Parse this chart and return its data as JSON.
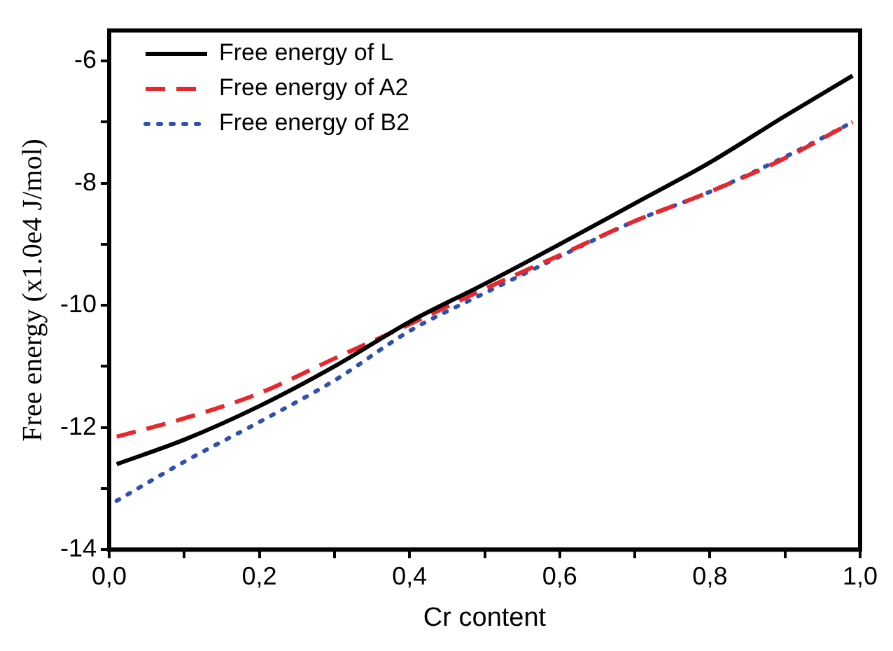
{
  "chart_data": {
    "type": "line",
    "xlabel": "Cr content",
    "ylabel": "Free energy (x1.0e4 J/mol)",
    "xlim": [
      0,
      1
    ],
    "ylim": [
      -14,
      -5.5
    ],
    "xticks": [
      {
        "value": 0,
        "label": "0,0"
      },
      {
        "value": 0.1,
        "label": null
      },
      {
        "value": 0.2,
        "label": "0,2"
      },
      {
        "value": 0.3,
        "label": null
      },
      {
        "value": 0.4,
        "label": "0,4"
      },
      {
        "value": 0.5,
        "label": null
      },
      {
        "value": 0.6,
        "label": "0,6"
      },
      {
        "value": 0.7,
        "label": null
      },
      {
        "value": 0.8,
        "label": "0,8"
      },
      {
        "value": 0.9,
        "label": null
      },
      {
        "value": 1,
        "label": "1,0"
      }
    ],
    "yticks": [
      -14,
      {
        "value": -13,
        "label": null
      },
      -12,
      {
        "value": -11,
        "label": null
      },
      -10,
      {
        "value": -9,
        "label": null
      },
      -8,
      {
        "value": -7,
        "label": null
      },
      -6
    ],
    "x": [
      0.01,
      0.1,
      0.2,
      0.3,
      0.4,
      0.5,
      0.6,
      0.7,
      0.8,
      0.9,
      0.99
    ],
    "series": [
      {
        "name": "Free energy of L",
        "color": "#000000",
        "line_style": "solid",
        "values": [
          -12.6,
          -12.2,
          -11.65,
          -11.0,
          -10.27,
          -9.65,
          -9.0,
          -8.33,
          -7.66,
          -6.9,
          -6.24
        ]
      },
      {
        "name": "Free energy of A2",
        "color": "#e8262b",
        "line_style": "dashed",
        "values": [
          -12.15,
          -11.85,
          -11.44,
          -10.87,
          -10.31,
          -9.73,
          -9.18,
          -8.62,
          -8.14,
          -7.59,
          -7.0
        ]
      },
      {
        "name": "Free energy of B2",
        "color": "#3050b0",
        "line_style": "dotted",
        "values": [
          -13.2,
          -12.56,
          -11.91,
          -11.23,
          -10.42,
          -9.8,
          -9.2,
          -8.62,
          -8.14,
          -7.57,
          -7.0
        ]
      }
    ],
    "legend": "top left",
    "grid": false,
    "marker": "none"
  }
}
